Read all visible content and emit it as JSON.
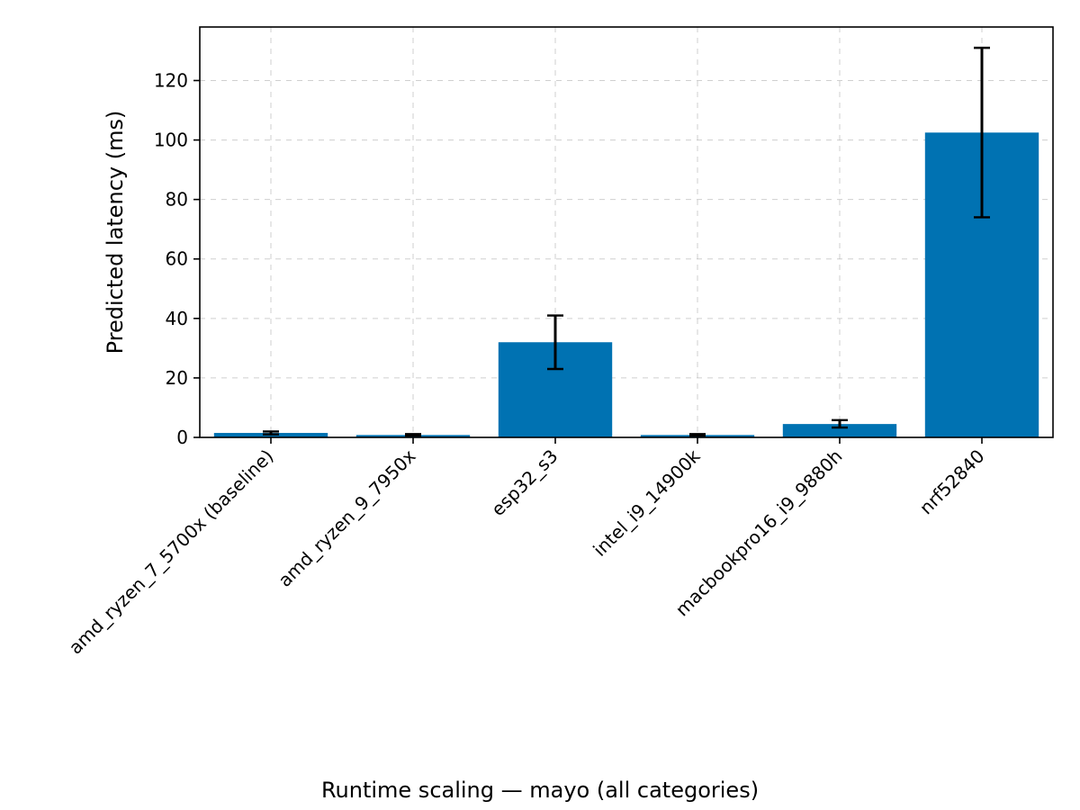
{
  "chart_data": {
    "type": "bar",
    "caption": "Runtime scaling — mayo (all categories)",
    "ylabel": "Predicted latency (ms)",
    "xlabel": "",
    "categories": [
      "amd_ryzen_7_5700x (baseline)",
      "amd_ryzen_9_7950x",
      "esp32_s3",
      "intel_i9_14900k",
      "macbookpro16_i9_9880h",
      "nrf52840"
    ],
    "values": [
      1.5,
      0.8,
      32.0,
      0.8,
      4.5,
      102.5
    ],
    "error_low": [
      1.0,
      0.6,
      23.0,
      0.6,
      3.3,
      74.0
    ],
    "error_high": [
      2.0,
      1.1,
      41.0,
      1.1,
      5.8,
      131.0
    ],
    "ylim": [
      0,
      138
    ],
    "yticks": [
      0,
      20,
      40,
      60,
      80,
      100,
      120
    ],
    "grid": true,
    "bar_color": "#0072b2",
    "error_color": "#000000"
  }
}
